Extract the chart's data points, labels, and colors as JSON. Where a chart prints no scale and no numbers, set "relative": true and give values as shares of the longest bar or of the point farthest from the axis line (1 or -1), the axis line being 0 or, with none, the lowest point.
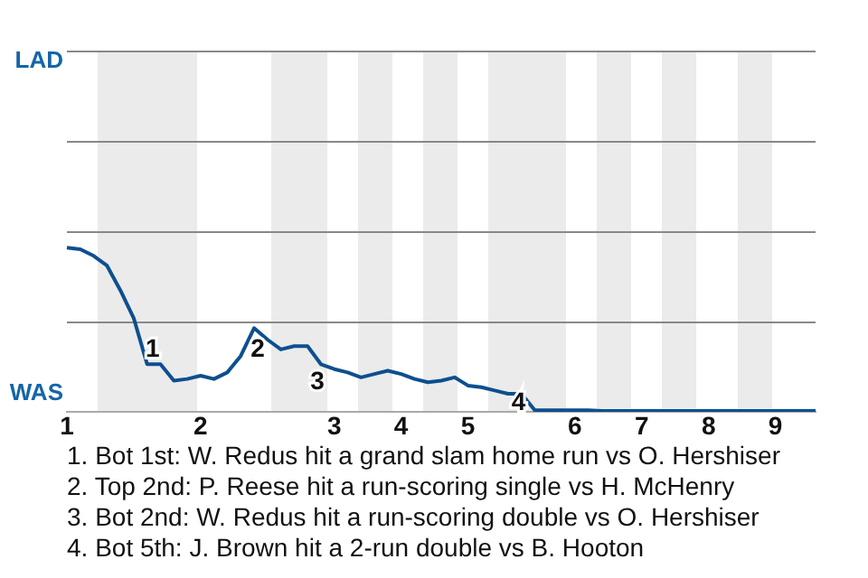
{
  "chart_data": {
    "type": "line",
    "relative": true,
    "categories": [
      "1",
      null,
      null,
      null,
      null,
      null,
      null,
      null,
      null,
      null,
      "2",
      null,
      null,
      null,
      null,
      null,
      null,
      null,
      null,
      null,
      "3",
      null,
      null,
      null,
      null,
      "4",
      null,
      null,
      null,
      null,
      "5",
      null,
      null,
      null,
      null,
      null,
      null,
      null,
      "6",
      null,
      null,
      null,
      null,
      "7",
      null,
      null,
      null,
      null,
      "8",
      null,
      null,
      null,
      null,
      "9",
      null,
      null,
      null
    ],
    "series": [
      {
        "color": "#0d4f8f",
        "values": [
          1,
          0.99,
          0.95,
          0.89,
          0.74,
          0.57,
          0.29,
          0.29,
          0.19,
          0.2,
          0.22,
          0.2,
          0.24,
          0.34,
          0.51,
          0.44,
          0.38,
          0.4,
          0.4,
          0.29,
          0.26,
          0.24,
          0.21,
          0.23,
          0.25,
          0.23,
          0.2,
          0.18,
          0.19,
          0.21,
          0.16,
          0.15,
          0.13,
          0.11,
          0.11,
          0.01,
          0.01,
          0.01,
          0.01,
          0.01,
          0.005,
          0.005,
          0.005,
          0.005,
          0.005,
          0.005,
          0.005,
          0.005,
          0.005,
          0.005,
          0.005,
          0.005,
          0.005,
          0.005,
          0.005,
          0.005,
          0.005
        ]
      }
    ],
    "ref_lines": [
      {
        "axis": "y",
        "value": 0.55,
        "color": "#888888"
      },
      {
        "axis": "y",
        "value": 1.1,
        "color": "#888888"
      },
      {
        "axis": "y",
        "value": 1.65,
        "color": "#888888"
      },
      {
        "axis": "y",
        "value": 2.2,
        "color": "#888888"
      }
    ],
    "marker": "none",
    "line_style": "solid",
    "legend": false,
    "annotations": [
      "LAD",
      "WAS",
      "1",
      "2",
      "3",
      "4",
      "1. Bot 1st: W. Redus hit a grand slam home run vs O. Hershiser",
      "2. Top 2nd: P. Reese hit a run-scoring single vs H. McHenry",
      "3. Bot 2nd: W. Redus hit a run-scoring double vs O. Hershiser",
      "4. Bot 5th: J. Brown hit a 2-run double vs B. Hooton"
    ]
  }
}
